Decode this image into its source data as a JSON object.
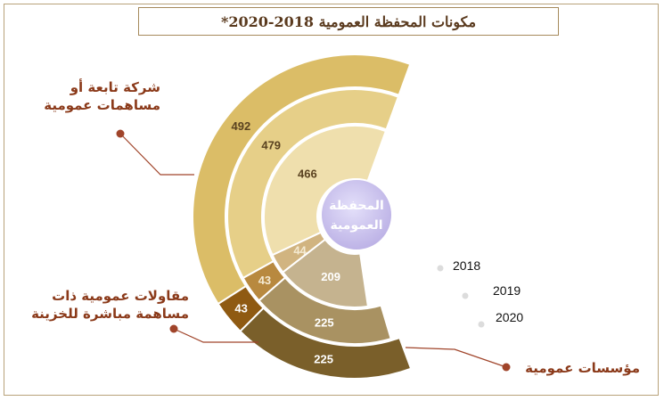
{
  "title": "مكونات المحفظة العمومية 2018-2020*",
  "center_label": [
    "المحفظة",
    "العمومية"
  ],
  "colors": {
    "companies": [
      "#efdfad",
      "#e6cf88",
      "#dbbd67"
    ],
    "direct": [
      "#d1b480",
      "#b8893f",
      "#8f5a12"
    ],
    "institutions": [
      "#c5b38f",
      "#a99262",
      "#7a5f2a"
    ],
    "center": "#b9aee4",
    "title_text": "#5a3a1e",
    "label_text": "#8b3a1a",
    "connector": "#a0442a"
  },
  "labels": {
    "companies": [
      "شركة  تابعة أو",
      "مساهمات عمومية"
    ],
    "direct": [
      "مقاولات عمومية ذات",
      "مساهمة مباشرة للخزينة"
    ],
    "institutions": "مؤسسات عمومية"
  },
  "chart_data": {
    "type": "nested-radial-bar",
    "title": "مكونات المحفظة العمومية 2018-2020*",
    "years": [
      "2018",
      "2019",
      "2020"
    ],
    "series": [
      {
        "name": "شركة تابعة أو مساهمات عمومية",
        "values": [
          466,
          479,
          492
        ]
      },
      {
        "name": "مقاولات عمومية ذات مساهمة مباشرة للخزينة",
        "values": [
          44,
          43,
          43
        ]
      },
      {
        "name": "مؤسسات عمومية",
        "values": [
          209,
          225,
          225
        ]
      }
    ]
  }
}
